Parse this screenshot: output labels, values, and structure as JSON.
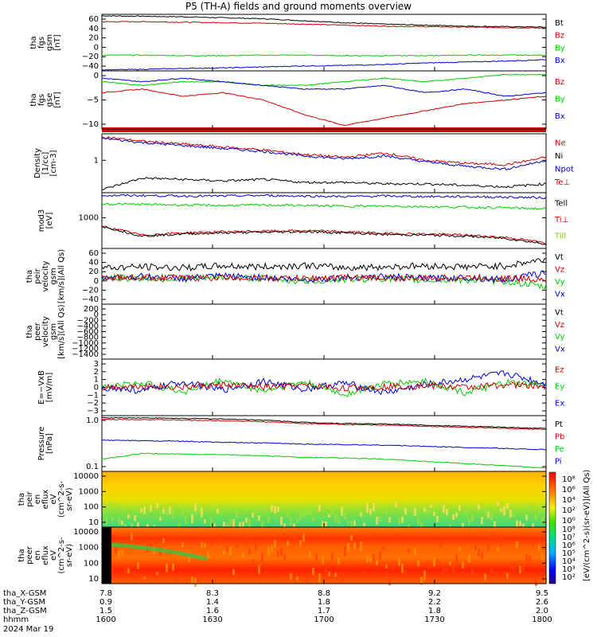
{
  "title": "P5 (TH-A) fields and ground moments overview",
  "colors": {
    "black": "#000000",
    "red": "#d00000",
    "green": "#00cc00",
    "blue": "#0000cc",
    "lime": "#77cc00"
  },
  "chart_data": [
    {
      "type": "line",
      "ylabel": [
        "tha",
        "fgs",
        "gsm",
        "[nT]"
      ],
      "yticks": [
        "60",
        "40",
        "20",
        "0",
        "−20",
        "−40"
      ],
      "ylim": [
        -40,
        75
      ],
      "legend": [
        {
          "text": "Bt",
          "color": "black"
        },
        {
          "text": "Bz",
          "color": "red"
        },
        {
          "text": "By",
          "color": "green"
        },
        {
          "text": "Bx",
          "color": "blue"
        }
      ],
      "series": [
        {
          "color": "black",
          "y": [
            72,
            71,
            70,
            68,
            66,
            62,
            58,
            55,
            53,
            51,
            50,
            49
          ]
        },
        {
          "color": "red",
          "y": [
            60,
            60,
            59,
            58,
            57,
            55,
            53,
            51,
            50,
            49,
            48,
            47
          ]
        },
        {
          "color": "green",
          "y": [
            -8,
            -8,
            -9,
            -9,
            -8,
            -8,
            -9,
            -9,
            -9,
            -8,
            -8,
            -8
          ]
        },
        {
          "color": "blue",
          "y": [
            -38,
            -37,
            -35,
            -34,
            -32,
            -30,
            -29,
            -27,
            -24,
            -22,
            -20,
            -17
          ]
        }
      ]
    },
    {
      "type": "line",
      "ylabel": [
        "tha",
        "fgs",
        "gse",
        "[nT]"
      ],
      "yticks": [
        "0",
        "−5",
        "−10"
      ],
      "ylim": [
        -14,
        2
      ],
      "legend": [
        {
          "text": "Bz",
          "color": "red"
        },
        {
          "text": "By",
          "color": "green"
        },
        {
          "text": "Bx",
          "color": "blue"
        }
      ],
      "series": [
        {
          "color": "red",
          "y": [
            -4,
            -3,
            -5,
            -4,
            -6,
            -10,
            -13,
            -11,
            -9,
            -7,
            -6,
            -5
          ]
        },
        {
          "color": "green",
          "y": [
            -1,
            -2,
            -1,
            -1,
            -2,
            -2,
            -1,
            0,
            -1,
            0,
            1,
            1
          ]
        },
        {
          "color": "blue",
          "y": [
            0,
            -1,
            0,
            -1,
            -2,
            -3,
            -3,
            -2,
            -4,
            -3,
            -5,
            -4
          ]
        }
      ]
    },
    {
      "type": "line",
      "ylabel": [
        "Density",
        "[1/cc]",
        "[cm-3]"
      ],
      "yticks": [
        "1"
      ],
      "ylim": [
        0,
        4
      ],
      "legend": [
        {
          "text": "Ne",
          "color": "red"
        },
        {
          "text": "Ni",
          "color": "black"
        },
        {
          "text": "Npot",
          "color": "blue"
        },
        {
          "text": "Te⊥",
          "color": "red"
        }
      ],
      "series": [
        {
          "color": "red",
          "y": [
            3.8,
            3.5,
            3.3,
            3.1,
            2.9,
            2.6,
            2.4,
            2.7,
            2.2,
            2,
            1.9,
            2.4
          ]
        },
        {
          "color": "blue",
          "y": [
            3.7,
            3.4,
            3.2,
            3,
            2.8,
            2.5,
            2.3,
            2.5,
            2.1,
            1.8,
            1.6,
            2.2
          ]
        },
        {
          "color": "black",
          "y": [
            0.2,
            1,
            0.9,
            0.8,
            0.9,
            0.7,
            0.7,
            0.6,
            0.6,
            0.5,
            0.4,
            0.6
          ]
        }
      ]
    },
    {
      "type": "line",
      "ylabel": [
        "mod3",
        "[eV]"
      ],
      "yticks": [
        "1000"
      ],
      "ylim": [
        0,
        10
      ],
      "legend": [
        {
          "text": "Tell",
          "color": "black"
        },
        {
          "text": "Ti⊥",
          "color": "red"
        },
        {
          "text": "Till",
          "color": "lime"
        }
      ],
      "series": [
        {
          "color": "blue",
          "y": [
            9.5,
            9.5,
            9.4,
            9.4,
            9.5,
            9.4,
            9.3,
            9.4,
            9.3,
            9.3,
            9.2,
            9.1
          ]
        },
        {
          "color": "green",
          "y": [
            8,
            7.9,
            7.8,
            7.7,
            7.8,
            7.7,
            7.6,
            7.6,
            7.5,
            7.4,
            7.3,
            7.1
          ]
        },
        {
          "color": "red",
          "y": [
            4,
            2.4,
            2.8,
            3,
            3.1,
            3.2,
            3,
            2.7,
            2.6,
            2.4,
            2,
            1
          ]
        },
        {
          "color": "black",
          "y": [
            4,
            2.2,
            2.6,
            2.8,
            2.9,
            3,
            2.8,
            2.5,
            2.4,
            2.2,
            1.8,
            0.8
          ]
        }
      ]
    },
    {
      "type": "line",
      "ylabel": [
        "tha",
        "peir",
        "velocity",
        "gsm",
        "[km/s](All Qs)"
      ],
      "yticks": [
        "60",
        "40",
        "20",
        "0",
        "−20",
        "−40"
      ],
      "ylim": [
        -55,
        60
      ],
      "legend": [
        {
          "text": "Vt",
          "color": "black"
        },
        {
          "text": "Vz",
          "color": "red"
        },
        {
          "text": "Vy",
          "color": "green"
        },
        {
          "text": "Vx",
          "color": "blue"
        }
      ],
      "series": [
        {
          "color": "black",
          "y": [
            20,
            22,
            20,
            24,
            22,
            25,
            20,
            22,
            24,
            22,
            24,
            38
          ]
        },
        {
          "color": "green",
          "y": [
            0,
            -2,
            -3,
            0,
            -2,
            -8,
            -4,
            -2,
            -6,
            -5,
            -8,
            -20
          ]
        },
        {
          "color": "blue",
          "y": [
            0,
            2,
            -2,
            3,
            0,
            -5,
            0,
            2,
            -2,
            0,
            -4,
            10
          ]
        },
        {
          "color": "red",
          "y": [
            0,
            0,
            -1,
            0,
            -1,
            -2,
            0,
            -1,
            -2,
            0,
            -2,
            -3
          ]
        }
      ]
    },
    {
      "type": "line",
      "ylabel": [
        "tha",
        "peer",
        "velocity",
        "gsm",
        "[km/s](All Qs)"
      ],
      "yticks": [
        "200",
        "0",
        "−200",
        "−400",
        "−600",
        "−800",
        "−1000",
        "−1200",
        "−1400"
      ],
      "ylim": [
        -1450,
        230
      ],
      "legend": [
        {
          "text": "Vt",
          "color": "black"
        },
        {
          "text": "Vz",
          "color": "red"
        },
        {
          "text": "Vy",
          "color": "green"
        },
        {
          "text": "Vx",
          "color": "blue"
        }
      ],
      "series": []
    },
    {
      "type": "line",
      "ylabel": [
        "E=−VxB",
        "[mV/m]"
      ],
      "yticks": [
        "3",
        "2",
        "1",
        "0",
        "−1",
        "−2",
        "−3"
      ],
      "ylim": [
        -3.2,
        3.2
      ],
      "legend": [
        {
          "text": "Ez",
          "color": "red"
        },
        {
          "text": "Ey",
          "color": "green"
        },
        {
          "text": "Ex",
          "color": "blue"
        }
      ],
      "series": [
        {
          "color": "green",
          "y": [
            0,
            0.5,
            -0.5,
            0.8,
            -0.4,
            0.6,
            -0.8,
            0.4,
            0.7,
            -0.6,
            0.5,
            0.2
          ]
        },
        {
          "color": "blue",
          "y": [
            0,
            -0.4,
            0.6,
            -0.3,
            0.7,
            -0.2,
            0.5,
            -0.6,
            0.3,
            0.9,
            1.6,
            0.4
          ]
        },
        {
          "color": "red",
          "y": [
            0,
            0.2,
            0,
            0.3,
            0,
            0.2,
            -0.1,
            0.1,
            0.2,
            0,
            0.3,
            0.1
          ]
        }
      ]
    },
    {
      "type": "line",
      "ylabel": [
        "Pressure",
        "[nPa]"
      ],
      "yticks": [
        "1.0",
        "0.1"
      ],
      "ylim": [
        0,
        10
      ],
      "legend": [
        {
          "text": "Pt",
          "color": "black"
        },
        {
          "text": "Pb",
          "color": "red"
        },
        {
          "text": "Pe",
          "color": "green"
        },
        {
          "text": "Pi",
          "color": "blue"
        }
      ],
      "series": [
        {
          "color": "black",
          "y": [
            9.6,
            9.6,
            9.5,
            9.4,
            9.2,
            8.8,
            8.6,
            8.5,
            8.3,
            8.1,
            7.9,
            7.7
          ]
        },
        {
          "color": "red",
          "y": [
            9.3,
            9.3,
            9.2,
            9.1,
            8.9,
            8.6,
            8.4,
            8.3,
            8.1,
            7.9,
            7.7,
            7.5
          ]
        },
        {
          "color": "blue",
          "y": [
            5.6,
            5.5,
            5.4,
            5.2,
            5.1,
            4.9,
            4.8,
            4.7,
            4.5,
            4.3,
            4.1,
            3.9
          ]
        },
        {
          "color": "green",
          "y": [
            2.2,
            3.2,
            3.1,
            3,
            2.8,
            2.5,
            2.4,
            2.2,
            1.8,
            1.4,
            1,
            0.6
          ]
        }
      ]
    },
    {
      "type": "heatmap",
      "ylabel": [
        "tha",
        "peir",
        "en",
        "eflux",
        "eV",
        "(cm^2-s-",
        "sr-eV)"
      ],
      "yticks": [
        "10000",
        "1000",
        "100",
        "10"
      ]
    },
    {
      "type": "heatmap",
      "ylabel": [
        "tha",
        "peer",
        "en",
        "eflux",
        "eV",
        "(cm^2-s-",
        "sr-eV)"
      ],
      "yticks": [
        "10000",
        "1000",
        "100",
        "10"
      ]
    }
  ],
  "colorbar": {
    "label": "[eV/(cm^2-s)(sr-eV)](All Qs)",
    "ticks_top": [
      "10⁸",
      "10⁶",
      "10⁴",
      "10²",
      "10⁰"
    ],
    "ticks_bottom": [
      "10⁸",
      "10⁷",
      "10⁶",
      "10⁵",
      "10⁴",
      "10³",
      "10²"
    ]
  },
  "x_axis": {
    "rows": [
      {
        "label": "tha_X-GSM",
        "values": [
          "7.8",
          "8.3",
          "8.8",
          "9.2",
          "9.5"
        ]
      },
      {
        "label": "tha_Y-GSM",
        "values": [
          "0.9",
          "1.4",
          "1.8",
          "2.2",
          "2.6"
        ]
      },
      {
        "label": "tha_Z-GSM",
        "values": [
          "1.5",
          "1.6",
          "1.7",
          "1.8",
          "2.0"
        ]
      },
      {
        "label": "hhmm",
        "values": [
          "1600",
          "1630",
          "1700",
          "1730",
          "1800"
        ]
      }
    ],
    "date": "2024 Mar 19"
  }
}
